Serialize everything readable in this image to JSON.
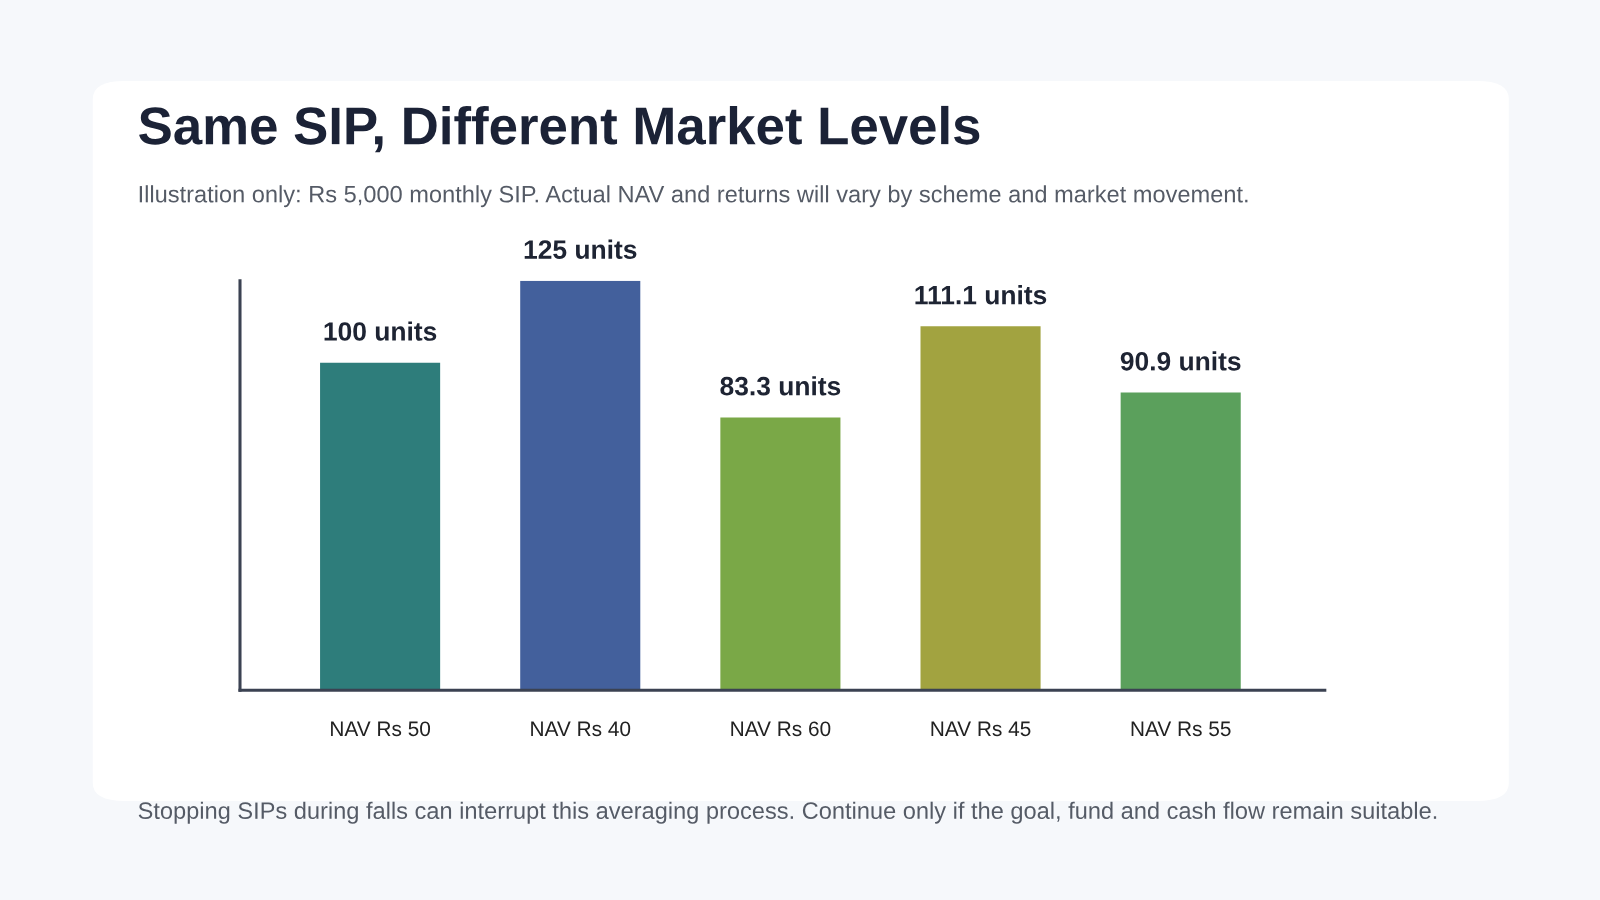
{
  "chart_data": {
    "type": "bar",
    "title": "Same SIP, Different Market Levels",
    "subtitle": "Illustration only: Rs 5,000 monthly SIP. Actual NAV and returns will vary by scheme and market movement.",
    "categories": [
      "NAV Rs 50",
      "NAV Rs 40",
      "NAV Rs 60",
      "NAV Rs 45",
      "NAV Rs 55"
    ],
    "values": [
      100,
      125,
      83.3,
      111.1,
      90.9
    ],
    "value_labels": [
      "100 units",
      "125 units",
      "83.3 units",
      "111.1 units",
      "90.9 units"
    ],
    "colors": [
      "#2e7d7b",
      "#43609c",
      "#7aa847",
      "#a2a340",
      "#5ba05c"
    ],
    "ylim": [
      0,
      125
    ],
    "tick_labels": "x",
    "grid": false,
    "legend": false,
    "annotations": [
      "Stopping SIPs during falls can interrupt this averaging process. Continue only if the goal, fund and cash flow remain suitable."
    ]
  }
}
